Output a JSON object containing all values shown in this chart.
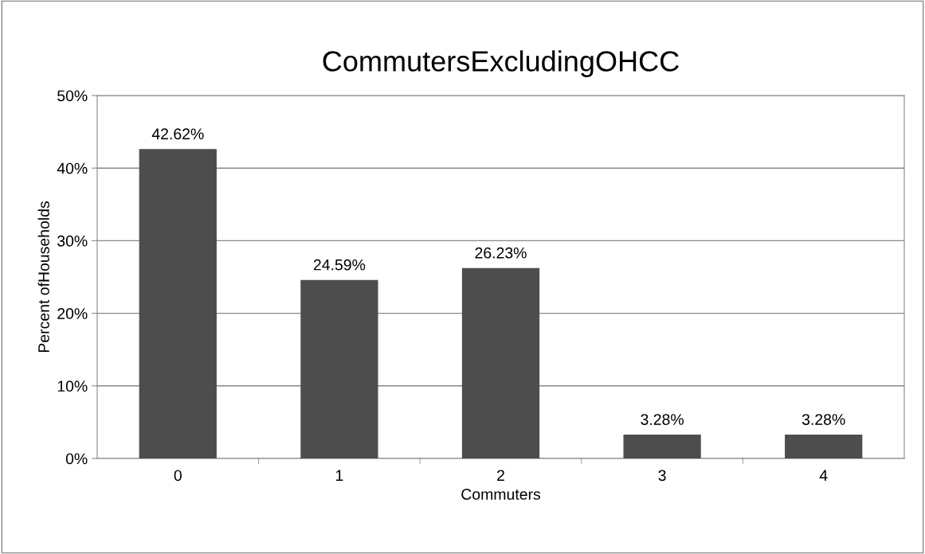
{
  "chart_data": {
    "type": "bar",
    "title": "CommutersExcludingOHCC",
    "xlabel": "Commuters",
    "ylabel": "Percent ofHouseholds",
    "categories": [
      "0",
      "1",
      "2",
      "3",
      "4"
    ],
    "values": [
      42.62,
      24.59,
      26.23,
      3.28,
      3.28
    ],
    "value_labels": [
      "42.62%",
      "24.59%",
      "26.23%",
      "3.28%",
      "3.28%"
    ],
    "color": "#4d4d4d",
    "ylim": [
      0,
      50
    ],
    "yticks": [
      {
        "value": 0,
        "label": "0%"
      },
      {
        "value": 10,
        "label": "10%"
      },
      {
        "value": 20,
        "label": "20%"
      },
      {
        "value": 30,
        "label": "30%"
      },
      {
        "value": 40,
        "label": "40%"
      },
      {
        "value": 50,
        "label": "50%"
      }
    ],
    "grid": "y",
    "legend": false
  }
}
